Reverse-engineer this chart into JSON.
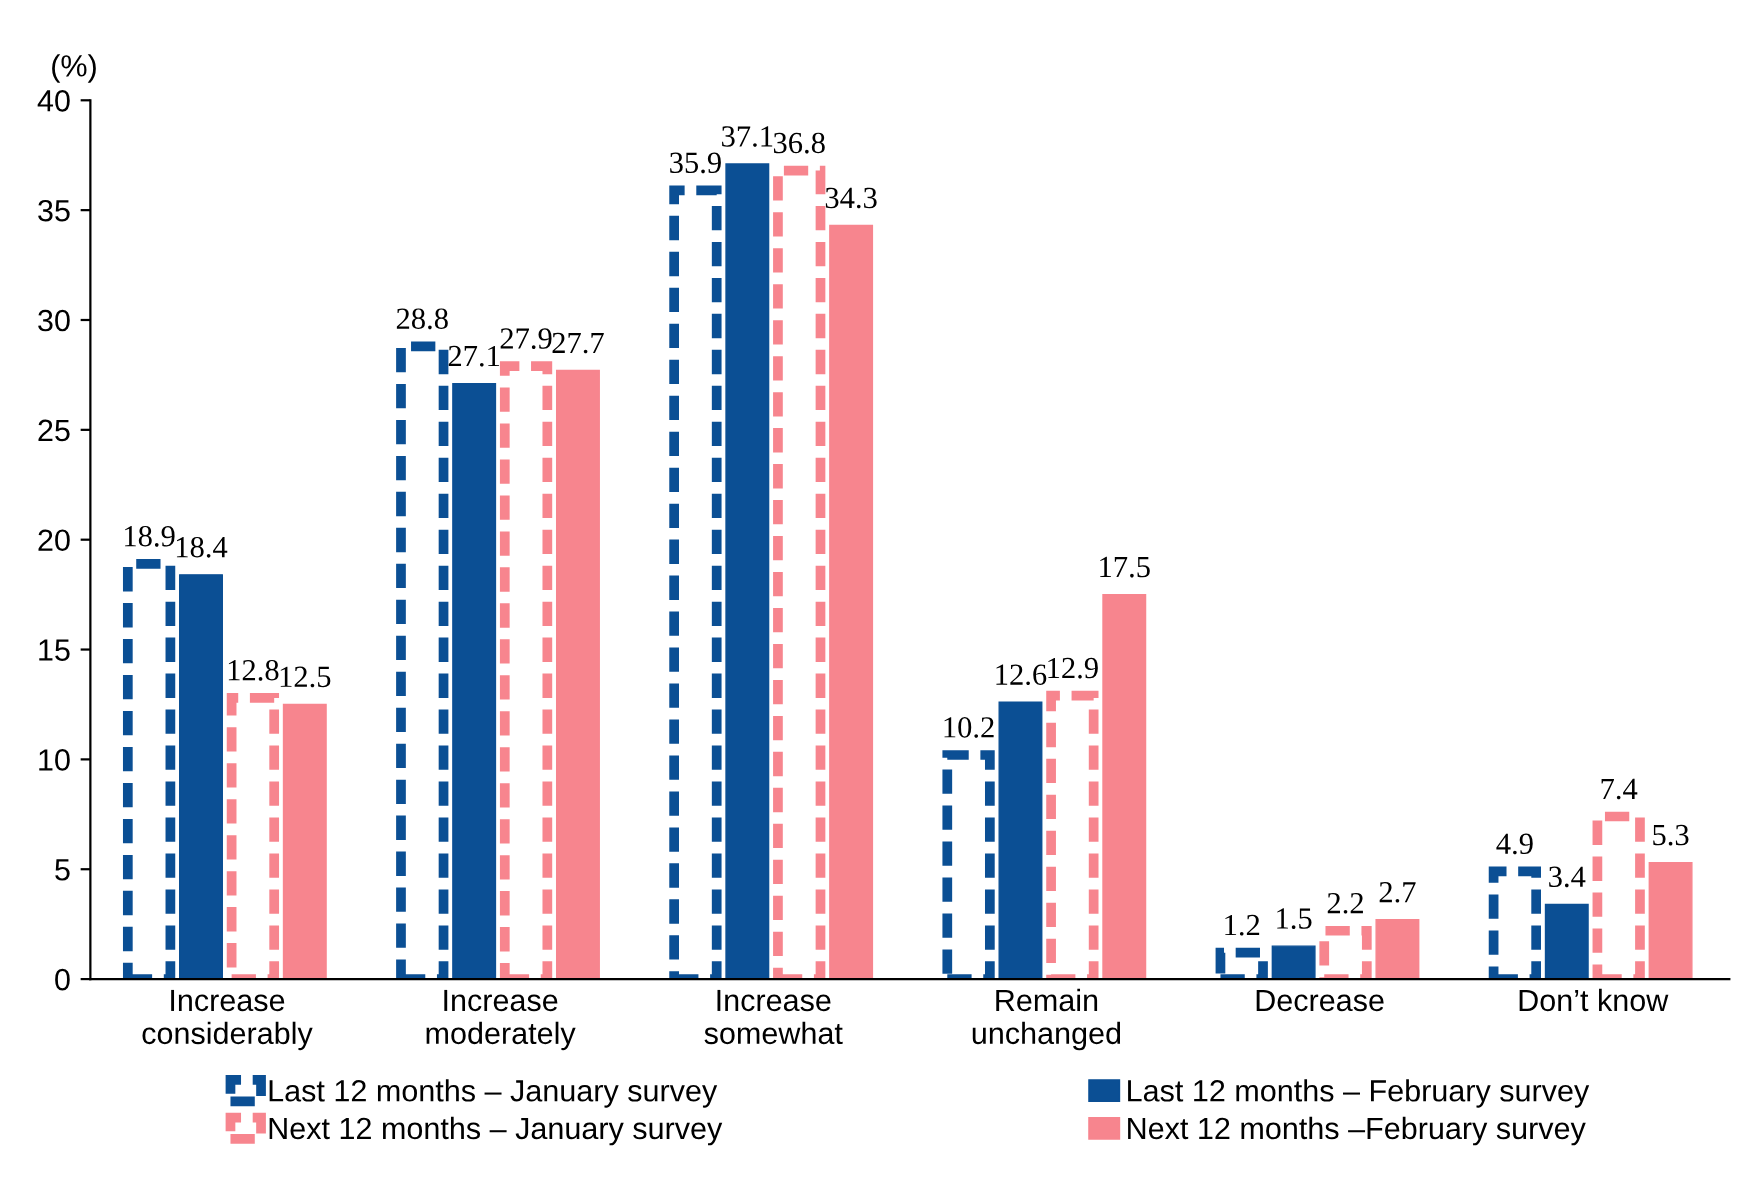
{
  "chart_data": {
    "type": "bar",
    "ylabel": "(%)",
    "categories": [
      "Increase\nconsiderably",
      "Increase\nmoderately",
      "Increase\nsomewhat",
      "Remain\nunchanged",
      "Decrease",
      "Don’t know"
    ],
    "series": [
      {
        "name": "Last 12 months – January survey",
        "color": "#0b4f94",
        "line_style": "dashed",
        "values": [
          18.9,
          28.8,
          35.9,
          10.2,
          1.2,
          4.9
        ]
      },
      {
        "name": "Last 12 months – February survey",
        "color": "#0b4f94",
        "line_style": "solid",
        "values": [
          18.4,
          27.1,
          37.1,
          12.6,
          1.5,
          3.4
        ]
      },
      {
        "name": "Next 12 months – January survey",
        "color": "#f7858e",
        "line_style": "dashed",
        "values": [
          12.8,
          27.9,
          36.8,
          12.9,
          2.2,
          7.4
        ]
      },
      {
        "name": "Next 12 months –February survey",
        "color": "#f7858e",
        "line_style": "solid",
        "values": [
          12.5,
          27.7,
          34.3,
          17.5,
          2.7,
          5.3
        ]
      }
    ],
    "ylim": [
      0,
      40
    ],
    "yticks": [
      0,
      5,
      10,
      15,
      20,
      25,
      30,
      35,
      40
    ],
    "data_labels": true,
    "grid": false,
    "legend": "bottom"
  }
}
